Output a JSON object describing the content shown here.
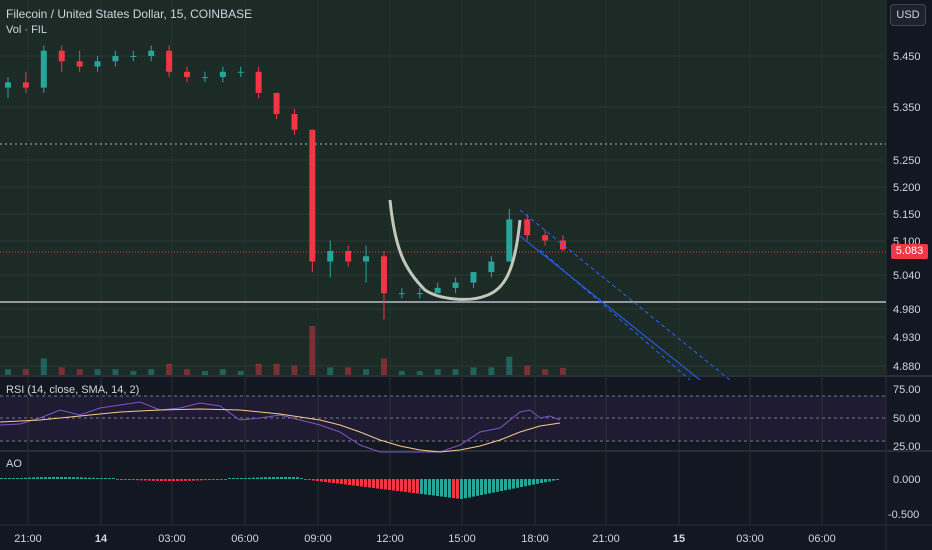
{
  "header": {
    "title": "Filecoin / United States Dollar, 15, COINBASE",
    "volume_label": "Vol · FIL"
  },
  "currency_button": "USD",
  "last_price": "5.083",
  "indicators": {
    "rsi_label": "RSI (14, close, SMA, 14, 2)",
    "ao_label": "AO"
  },
  "colors": {
    "up": "#26a69a",
    "down": "#f23645",
    "rsi_line": "#7e57c2",
    "rsi_ma": "#f7c98b",
    "cup_curve": "#dfe3d5",
    "channel": "#2962ff",
    "background": "#131722"
  },
  "chart_data": [
    {
      "type": "candlestick",
      "title": "Filecoin / United States Dollar, 15, COINBASE",
      "y_ticks": [
        "5.450",
        "5.350",
        "5.250",
        "5.200",
        "5.150",
        "5.100",
        "5.040",
        "4.980",
        "4.930",
        "4.880"
      ],
      "x_ticks": [
        "21:00",
        "14",
        "03:00",
        "06:00",
        "09:00",
        "12:00",
        "15:00",
        "18:00",
        "21:00",
        "15",
        "03:00",
        "06:00"
      ],
      "last_price": 5.083,
      "horizontal_levels": [
        5.285,
        4.99
      ],
      "candles_approx": [
        {
          "t": "20:00",
          "o": 5.39,
          "h": 5.41,
          "l": 5.37,
          "c": 5.4
        },
        {
          "t": "21:00",
          "o": 5.4,
          "h": 5.42,
          "l": 5.38,
          "c": 5.39
        },
        {
          "t": "22:00",
          "o": 5.39,
          "h": 5.47,
          "l": 5.38,
          "c": 5.46
        },
        {
          "t": "23:00",
          "o": 5.46,
          "h": 5.47,
          "l": 5.42,
          "c": 5.44
        },
        {
          "t": "00:00",
          "o": 5.44,
          "h": 5.46,
          "l": 5.42,
          "c": 5.43
        },
        {
          "t": "01:00",
          "o": 5.43,
          "h": 5.45,
          "l": 5.42,
          "c": 5.44
        },
        {
          "t": "02:00",
          "o": 5.44,
          "h": 5.46,
          "l": 5.43,
          "c": 5.45
        },
        {
          "t": "03:00",
          "o": 5.45,
          "h": 5.46,
          "l": 5.44,
          "c": 5.45
        },
        {
          "t": "04:00",
          "o": 5.45,
          "h": 5.47,
          "l": 5.44,
          "c": 5.46
        },
        {
          "t": "05:00",
          "o": 5.46,
          "h": 5.47,
          "l": 5.41,
          "c": 5.42
        },
        {
          "t": "06:00",
          "o": 5.42,
          "h": 5.43,
          "l": 5.4,
          "c": 5.41
        },
        {
          "t": "07:00",
          "o": 5.41,
          "h": 5.42,
          "l": 5.4,
          "c": 5.41
        },
        {
          "t": "08:00",
          "o": 5.41,
          "h": 5.43,
          "l": 5.4,
          "c": 5.42
        },
        {
          "t": "09:00",
          "o": 5.42,
          "h": 5.43,
          "l": 5.41,
          "c": 5.42
        },
        {
          "t": "10:00",
          "o": 5.42,
          "h": 5.43,
          "l": 5.37,
          "c": 5.38
        },
        {
          "t": "11:00",
          "o": 5.38,
          "h": 5.38,
          "l": 5.33,
          "c": 5.34
        },
        {
          "t": "11:30",
          "o": 5.34,
          "h": 5.35,
          "l": 5.3,
          "c": 5.31
        },
        {
          "t": "12:00",
          "o": 5.31,
          "h": 5.31,
          "l": 5.04,
          "c": 5.06
        },
        {
          "t": "12:30",
          "o": 5.06,
          "h": 5.1,
          "l": 5.03,
          "c": 5.08
        },
        {
          "t": "13:00",
          "o": 5.08,
          "h": 5.09,
          "l": 5.05,
          "c": 5.06
        },
        {
          "t": "13:30",
          "o": 5.06,
          "h": 5.09,
          "l": 5.02,
          "c": 5.07
        },
        {
          "t": "14:00",
          "o": 5.07,
          "h": 5.08,
          "l": 4.95,
          "c": 5.0
        },
        {
          "t": "14:30",
          "o": 5.0,
          "h": 5.01,
          "l": 4.99,
          "c": 5.0
        },
        {
          "t": "15:00",
          "o": 5.0,
          "h": 5.01,
          "l": 4.99,
          "c": 5.0
        },
        {
          "t": "15:30",
          "o": 5.0,
          "h": 5.02,
          "l": 5.0,
          "c": 5.01
        },
        {
          "t": "16:00",
          "o": 5.01,
          "h": 5.03,
          "l": 5.0,
          "c": 5.02
        },
        {
          "t": "16:30",
          "o": 5.02,
          "h": 5.04,
          "l": 5.01,
          "c": 5.04
        },
        {
          "t": "17:00",
          "o": 5.04,
          "h": 5.07,
          "l": 5.03,
          "c": 5.06
        },
        {
          "t": "17:30",
          "o": 5.06,
          "h": 5.16,
          "l": 5.06,
          "c": 5.14
        },
        {
          "t": "18:00",
          "o": 5.14,
          "h": 5.15,
          "l": 5.1,
          "c": 5.11
        },
        {
          "t": "18:30",
          "o": 5.11,
          "h": 5.12,
          "l": 5.09,
          "c": 5.1
        },
        {
          "t": "19:00",
          "o": 5.1,
          "h": 5.11,
          "l": 5.08,
          "c": 5.083
        }
      ]
    },
    {
      "type": "line",
      "title": "RSI (14, close, SMA, 14, 2)",
      "y_ticks": [
        "75.00",
        "50.00",
        "25.00"
      ],
      "levels": [
        70,
        50,
        30
      ]
    },
    {
      "type": "bar",
      "title": "AO",
      "y_ticks": [
        "0.000",
        "-0.500"
      ]
    }
  ]
}
